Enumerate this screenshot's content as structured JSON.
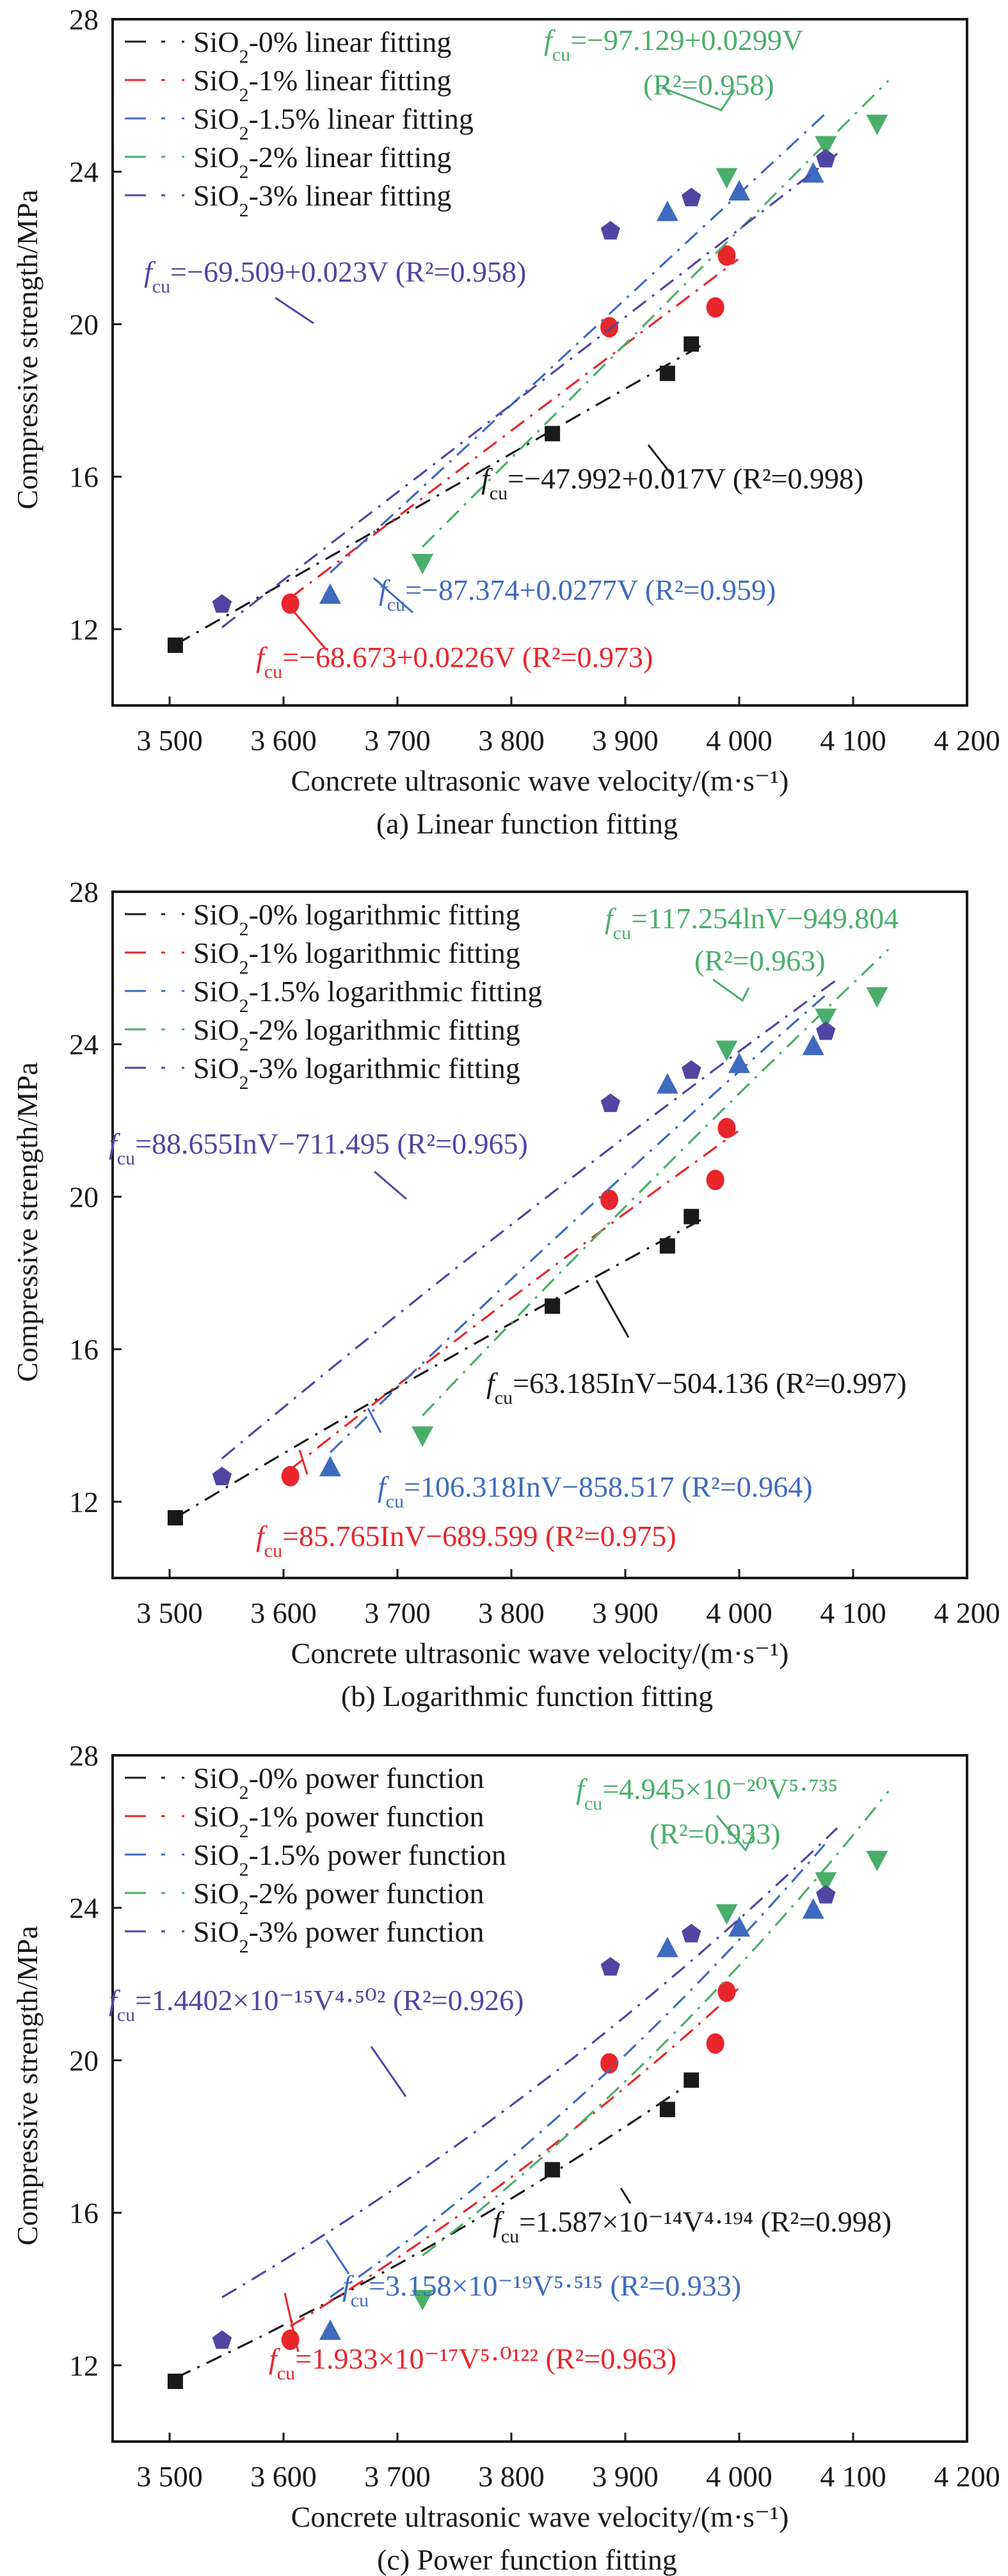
{
  "figure": {
    "ylabel": "Compressive strength/MPa",
    "xlabel": "Concrete ultrasonic wave velocity/(m·s⁻¹)",
    "colors": {
      "SiO2-0%": "#1a1a1a",
      "SiO2-1%": "#e8262b",
      "SiO2-1.5%": "#3e6bbf",
      "SiO2-2%": "#4aae6b",
      "SiO2-3%": "#5145a2"
    }
  },
  "chart_data": [
    {
      "type": "scatter",
      "panel": "a",
      "title": "(a) Linear function fitting",
      "fit_kind": "linear",
      "xlabel": "Concrete ultrasonic wave velocity/(m·s⁻¹)",
      "ylabel": "Compressive strength/MPa",
      "xlim": [
        3450,
        4200
      ],
      "ylim": [
        10,
        28
      ],
      "xticks": [
        3500,
        3600,
        3700,
        3800,
        3900,
        4000,
        4100,
        4200
      ],
      "xtick_labels": [
        "3 500",
        "3 600",
        "3 700",
        "3 800",
        "3 900",
        "4 000",
        "4 100",
        "4 200"
      ],
      "yticks": [
        12,
        16,
        20,
        24,
        28
      ],
      "ytick_labels": [
        "12",
        "16",
        "20",
        "24",
        "28"
      ],
      "legend_position": "top-left",
      "legend": [
        "SiO₂-0% linear fitting",
        "SiO₂-1% linear fitting",
        "SiO₂-1.5% linear fitting",
        "SiO₂-2% linear fitting",
        "SiO₂-3% linear fitting"
      ],
      "equations": [
        {
          "series": "SiO2-3%",
          "text": "=−69.509+0.023V (R²=0.958)",
          "r2": 0.958
        },
        {
          "series": "SiO2-2%",
          "text": "=−97.129+0.0299V",
          "text2": "(R²=0.958)",
          "r2": 0.958
        },
        {
          "series": "SiO2-0%",
          "text": "=−47.992+0.017V (R²=0.998)",
          "r2": 0.998
        },
        {
          "series": "SiO2-1.5%",
          "text": "=−87.374+0.0277V (R²=0.959)",
          "r2": 0.959
        },
        {
          "series": "SiO2-1%",
          "text": "=−68.673+0.0226V (R²=0.973)",
          "r2": 0.973
        }
      ],
      "series": [
        {
          "name": "SiO2-0%",
          "marker": "square",
          "fit": {
            "a": -47.992,
            "b": 0.017
          },
          "x": [
            3505,
            3836,
            3937,
            3958
          ],
          "y": [
            11.58,
            17.13,
            18.71,
            19.48
          ]
        },
        {
          "name": "SiO2-1%",
          "marker": "circle",
          "fit": {
            "a": -68.673,
            "b": 0.0226
          },
          "x": [
            3606,
            3886,
            3979,
            3989
          ],
          "y": [
            12.67,
            19.92,
            20.44,
            21.8
          ]
        },
        {
          "name": "SiO2-1.5%",
          "marker": "triangle-up",
          "fit": {
            "a": -87.374,
            "b": 0.0277
          },
          "x": [
            3641,
            3937,
            4000,
            4065
          ],
          "y": [
            12.9,
            22.94,
            23.48,
            23.95
          ]
        },
        {
          "name": "SiO2-2%",
          "marker": "triangle-down",
          "fit": {
            "a": -97.129,
            "b": 0.0299
          },
          "x": [
            3722,
            3989,
            4076,
            4121
          ],
          "y": [
            13.74,
            23.86,
            24.7,
            25.26
          ]
        },
        {
          "name": "SiO2-3%",
          "marker": "pentagon",
          "fit": {
            "a": -69.509,
            "b": 0.023
          },
          "x": [
            3546,
            3887,
            3958,
            4076
          ],
          "y": [
            12.65,
            22.44,
            23.31,
            24.33
          ]
        }
      ]
    },
    {
      "type": "scatter",
      "panel": "b",
      "title": "(b) Logarithmic function fitting",
      "fit_kind": "logarithmic",
      "xlabel": "Concrete ultrasonic wave velocity/(m·s⁻¹)",
      "ylabel": "Compressive strength/MPa",
      "xlim": [
        3450,
        4200
      ],
      "ylim": [
        10,
        28
      ],
      "xticks": [
        3500,
        3600,
        3700,
        3800,
        3900,
        4000,
        4100,
        4200
      ],
      "xtick_labels": [
        "3 500",
        "3 600",
        "3 700",
        "3 800",
        "3 900",
        "4 000",
        "4 100",
        "4 200"
      ],
      "yticks": [
        12,
        16,
        20,
        24,
        28
      ],
      "ytick_labels": [
        "12",
        "16",
        "20",
        "24",
        "28"
      ],
      "legend_position": "top-left",
      "legend": [
        "SiO₂-0% logarithmic fitting",
        "SiO₂-1% logarithmic fitting",
        "SiO₂-1.5% logarithmic fitting",
        "SiO₂-2% logarithmic fitting",
        "SiO₂-3% logarithmic fitting"
      ],
      "equations": [
        {
          "series": "SiO2-2%",
          "text": "=117.254lnV−949.804",
          "text2": "(R²=0.963)",
          "r2": 0.963
        },
        {
          "series": "SiO2-3%",
          "text": "=88.655InV−711.495 (R²=0.965)",
          "r2": 0.965
        },
        {
          "series": "SiO2-0%",
          "text": "=63.185InV−504.136 (R²=0.997)",
          "r2": 0.997
        },
        {
          "series": "SiO2-1.5%",
          "text": "=106.318InV−858.517 (R²=0.964)",
          "r2": 0.964
        },
        {
          "series": "SiO2-1%",
          "text": "=85.765InV−689.599 (R²=0.975)",
          "r2": 0.975
        }
      ],
      "series": [
        {
          "name": "SiO2-0%",
          "marker": "square",
          "fit": {
            "a": 63.185,
            "b": -504.136
          },
          "x": [
            3505,
            3836,
            3937,
            3958
          ],
          "y": [
            11.58,
            17.13,
            18.71,
            19.48
          ]
        },
        {
          "name": "SiO2-1%",
          "marker": "circle",
          "fit": {
            "a": 85.765,
            "b": -689.599
          },
          "x": [
            3606,
            3886,
            3979,
            3989
          ],
          "y": [
            12.67,
            19.92,
            20.44,
            21.8
          ]
        },
        {
          "name": "SiO2-1.5%",
          "marker": "triangle-up",
          "fit": {
            "a": 106.318,
            "b": -858.517
          },
          "x": [
            3641,
            3937,
            4000,
            4065
          ],
          "y": [
            12.9,
            22.94,
            23.48,
            23.95
          ]
        },
        {
          "name": "SiO2-2%",
          "marker": "triangle-down",
          "fit": {
            "a": 117.254,
            "b": -949.804
          },
          "x": [
            3722,
            3989,
            4076,
            4121
          ],
          "y": [
            13.74,
            23.86,
            24.7,
            25.26
          ]
        },
        {
          "name": "SiO2-3%",
          "marker": "pentagon",
          "fit": {
            "a": 88.655,
            "b": -711.495
          },
          "x": [
            3546,
            3887,
            3958,
            4076
          ],
          "y": [
            12.65,
            22.44,
            23.31,
            24.33
          ]
        }
      ]
    },
    {
      "type": "scatter",
      "panel": "c",
      "title": "(c) Power function fitting",
      "fit_kind": "power",
      "xlabel": "Concrete ultrasonic wave velocity/(m·s⁻¹)",
      "ylabel": "Compressive strength/MPa",
      "xlim": [
        3450,
        4200
      ],
      "ylim": [
        10,
        28
      ],
      "xticks": [
        3500,
        3600,
        3700,
        3800,
        3900,
        4000,
        4100,
        4200
      ],
      "xtick_labels": [
        "3 500",
        "3 600",
        "3 700",
        "3 800",
        "3 900",
        "4 000",
        "4 100",
        "4 200"
      ],
      "yticks": [
        12,
        16,
        20,
        24,
        28
      ],
      "ytick_labels": [
        "12",
        "16",
        "20",
        "24",
        "28"
      ],
      "legend_position": "top-left",
      "legend": [
        "SiO₂-0% power function",
        "SiO₂-1% power function",
        "SiO₂-1.5% power function",
        "SiO₂-2% power function",
        "SiO₂-3% power function"
      ],
      "equations": [
        {
          "series": "SiO2-2%",
          "text": "=4.945×10⁻²⁰V⁵·⁷³⁵",
          "text2": "(R²=0.933)",
          "r2": 0.933
        },
        {
          "series": "SiO2-3%",
          "text": "=1.4402×10⁻¹⁵V⁴·⁵⁰² (R²=0.926)",
          "r2": 0.926
        },
        {
          "series": "SiO2-0%",
          "text": "=1.587×10⁻¹⁴V⁴·¹⁹⁴ (R²=0.998)",
          "r2": 0.998
        },
        {
          "series": "SiO2-1.5%",
          "text": "=3.158×10⁻¹⁹V⁵·⁵¹⁵ (R²=0.933)",
          "r2": 0.933
        },
        {
          "series": "SiO2-1%",
          "text": "=1.933×10⁻¹⁷V⁵·⁰¹²² (R²=0.963)",
          "r2": 0.963
        }
      ],
      "series": [
        {
          "name": "SiO2-0%",
          "marker": "square",
          "fit": {
            "a": 1.587e-14,
            "b": 4.194
          },
          "x": [
            3505,
            3836,
            3937,
            3958
          ],
          "y": [
            11.58,
            17.13,
            18.71,
            19.48
          ]
        },
        {
          "name": "SiO2-1%",
          "marker": "circle",
          "fit": {
            "a": 1.933e-17,
            "b": 5.0122
          },
          "x": [
            3606,
            3886,
            3979,
            3989
          ],
          "y": [
            12.67,
            19.92,
            20.44,
            21.8
          ]
        },
        {
          "name": "SiO2-1.5%",
          "marker": "triangle-up",
          "fit": {
            "a": 3.158e-19,
            "b": 5.515
          },
          "x": [
            3641,
            3937,
            4000,
            4065
          ],
          "y": [
            12.9,
            22.94,
            23.48,
            23.95
          ]
        },
        {
          "name": "SiO2-2%",
          "marker": "triangle-down",
          "fit": {
            "a": 4.945e-20,
            "b": 5.735
          },
          "x": [
            3722,
            3989,
            4076,
            4121
          ],
          "y": [
            13.74,
            23.86,
            24.7,
            25.26
          ]
        },
        {
          "name": "SiO2-3%",
          "marker": "pentagon",
          "fit": {
            "a": 1.4402e-15,
            "b": 4.502
          },
          "x": [
            3546,
            3887,
            3958,
            4076
          ],
          "y": [
            12.65,
            22.44,
            23.31,
            24.33
          ]
        }
      ]
    }
  ]
}
